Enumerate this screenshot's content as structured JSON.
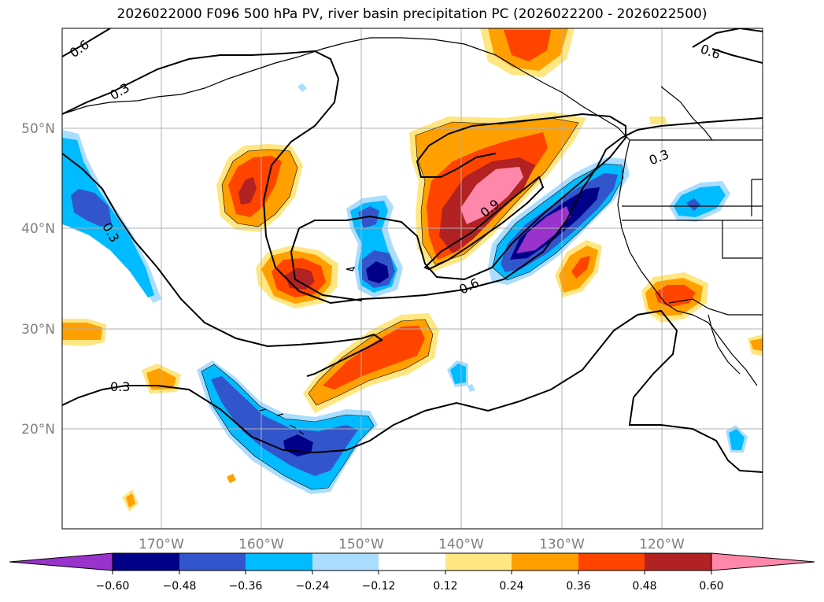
{
  "title": "2026022000 F096 500 hPa PV, river basin precipitation PC (2026022200 - 2026022500)",
  "colors": {
    "neg_lt_-0.60": "#9933cc",
    "neg_-0.60_-0.48": "#000088",
    "neg_-0.48_-0.36": "#3355cc",
    "neg_-0.36_-0.24": "#00bbff",
    "neg_-0.24_-0.12": "#aaddff",
    "neutral": "#ffffff",
    "pos_0.12_0.24": "#ffe680",
    "pos_0.24_0.36": "#ffa000",
    "pos_0.36_0.48": "#ff4400",
    "pos_0.48_0.60": "#b22222",
    "pos_gt_0.60": "#ff88aa",
    "contour": "#000000",
    "grid": "#b0b0b0",
    "land_outline": "#000000"
  },
  "map": {
    "lon_labels": [
      "170°W",
      "160°W",
      "150°W",
      "140°W",
      "130°W",
      "120°W"
    ],
    "lat_labels": [
      "50°N",
      "40°N",
      "30°N",
      "20°N"
    ],
    "contour_labels": [
      "0.6",
      "0.3",
      "0.3",
      "0.9",
      "0.6",
      "0.3",
      "0.3",
      "0.6"
    ]
  },
  "colorbar": {
    "tick_labels": [
      "−0.60",
      "−0.48",
      "−0.36",
      "−0.24",
      "−0.12",
      "0.12",
      "0.24",
      "0.36",
      "0.48",
      "0.60"
    ]
  }
}
